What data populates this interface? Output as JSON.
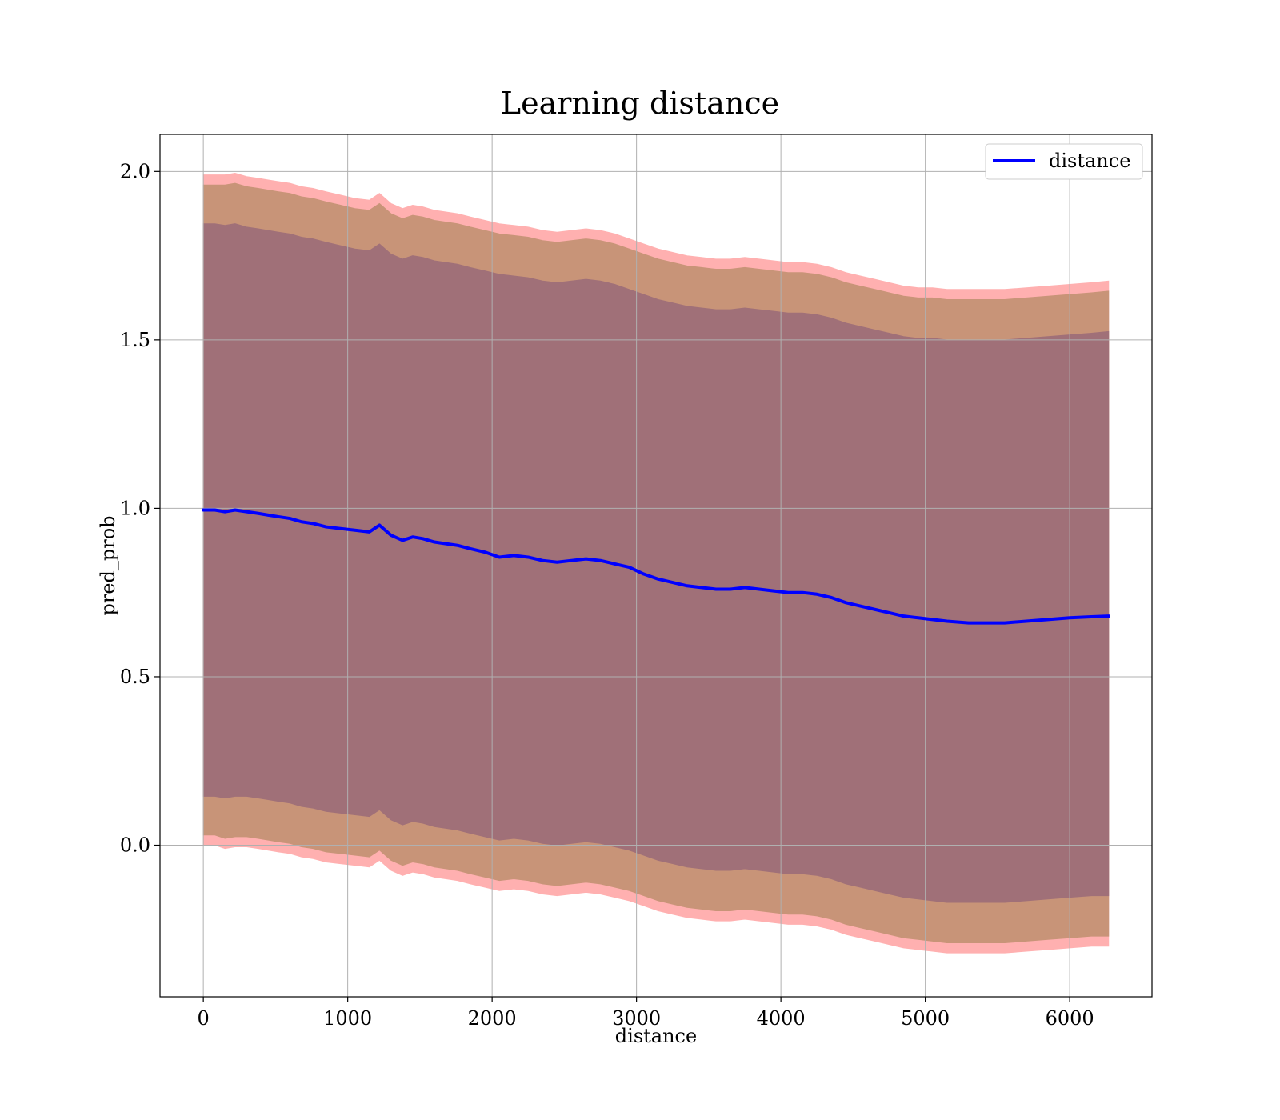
{
  "chart_data": {
    "type": "line",
    "title": "Learning distance",
    "xlabel": "distance",
    "ylabel": "pred_prob",
    "xlim": [
      -300,
      6570
    ],
    "ylim": [
      -0.45,
      2.11
    ],
    "xticks": [
      0,
      1000,
      2000,
      3000,
      4000,
      5000,
      6000
    ],
    "yticks": [
      0.0,
      0.5,
      1.0,
      1.5,
      2.0
    ],
    "xtick_labels": [
      "0",
      "1000",
      "2000",
      "3000",
      "4000",
      "5000",
      "6000"
    ],
    "ytick_labels": [
      "0.0",
      "0.5",
      "1.0",
      "1.5",
      "2.0"
    ],
    "grid": true,
    "legend_position": "top-right",
    "colors": {
      "line": "#0000ff",
      "band_outer": "#ffb0b0",
      "band_middle": "#c89478",
      "band_inner": "#a07078",
      "grid": "#b0b0b0"
    },
    "series": [
      {
        "name": "distance",
        "x": [
          0,
          80,
          150,
          220,
          300,
          380,
          450,
          520,
          600,
          680,
          760,
          850,
          950,
          1050,
          1150,
          1220,
          1300,
          1380,
          1450,
          1520,
          1600,
          1680,
          1760,
          1850,
          1950,
          2050,
          2150,
          2250,
          2350,
          2450,
          2550,
          2650,
          2750,
          2850,
          2950,
          3050,
          3150,
          3250,
          3350,
          3450,
          3550,
          3650,
          3750,
          3850,
          3950,
          4050,
          4150,
          4250,
          4350,
          4450,
          4550,
          4650,
          4750,
          4850,
          4950,
          5050,
          5150,
          5300,
          5450,
          5550,
          5700,
          5850,
          6000,
          6150,
          6270
        ],
        "values": [
          0.995,
          0.995,
          0.99,
          0.995,
          0.99,
          0.985,
          0.98,
          0.975,
          0.97,
          0.96,
          0.955,
          0.945,
          0.94,
          0.935,
          0.93,
          0.95,
          0.92,
          0.905,
          0.915,
          0.91,
          0.9,
          0.895,
          0.89,
          0.88,
          0.87,
          0.855,
          0.86,
          0.855,
          0.845,
          0.84,
          0.845,
          0.85,
          0.845,
          0.835,
          0.825,
          0.805,
          0.79,
          0.78,
          0.77,
          0.765,
          0.76,
          0.76,
          0.765,
          0.76,
          0.755,
          0.75,
          0.75,
          0.745,
          0.735,
          0.72,
          0.71,
          0.7,
          0.69,
          0.68,
          0.675,
          0.67,
          0.665,
          0.66,
          0.66,
          0.66,
          0.665,
          0.67,
          0.675,
          0.678,
          0.68
        ]
      }
    ],
    "bands": [
      {
        "upper": [
          1.99,
          1.99,
          1.99,
          1.995,
          1.985,
          1.98,
          1.975,
          1.97,
          1.965,
          1.955,
          1.95,
          1.94,
          1.93,
          1.92,
          1.915,
          1.935,
          1.905,
          1.89,
          1.9,
          1.895,
          1.885,
          1.88,
          1.875,
          1.865,
          1.855,
          1.845,
          1.84,
          1.835,
          1.825,
          1.82,
          1.825,
          1.83,
          1.825,
          1.815,
          1.8,
          1.785,
          1.77,
          1.76,
          1.75,
          1.745,
          1.74,
          1.74,
          1.745,
          1.74,
          1.735,
          1.73,
          1.73,
          1.725,
          1.715,
          1.7,
          1.69,
          1.68,
          1.67,
          1.66,
          1.655,
          1.655,
          1.65,
          1.65,
          1.65,
          1.65,
          1.655,
          1.66,
          1.665,
          1.67,
          1.675
        ],
        "lower": [
          0.0,
          0.0,
          -0.01,
          -0.005,
          -0.005,
          -0.01,
          -0.015,
          -0.02,
          -0.025,
          -0.035,
          -0.04,
          -0.05,
          -0.055,
          -0.06,
          -0.065,
          -0.045,
          -0.075,
          -0.09,
          -0.08,
          -0.085,
          -0.095,
          -0.1,
          -0.105,
          -0.115,
          -0.125,
          -0.135,
          -0.13,
          -0.135,
          -0.145,
          -0.15,
          -0.145,
          -0.14,
          -0.145,
          -0.155,
          -0.165,
          -0.18,
          -0.195,
          -0.205,
          -0.215,
          -0.22,
          -0.225,
          -0.225,
          -0.22,
          -0.225,
          -0.23,
          -0.235,
          -0.235,
          -0.24,
          -0.25,
          -0.265,
          -0.275,
          -0.285,
          -0.295,
          -0.305,
          -0.31,
          -0.315,
          -0.32,
          -0.32,
          -0.32,
          -0.32,
          -0.315,
          -0.31,
          -0.305,
          -0.3,
          -0.3
        ]
      },
      {
        "upper": [
          1.96,
          1.96,
          1.96,
          1.965,
          1.955,
          1.95,
          1.945,
          1.94,
          1.935,
          1.925,
          1.92,
          1.91,
          1.9,
          1.89,
          1.885,
          1.905,
          1.875,
          1.86,
          1.87,
          1.865,
          1.855,
          1.85,
          1.845,
          1.835,
          1.825,
          1.815,
          1.81,
          1.805,
          1.795,
          1.79,
          1.795,
          1.8,
          1.795,
          1.785,
          1.77,
          1.755,
          1.74,
          1.73,
          1.72,
          1.715,
          1.71,
          1.71,
          1.715,
          1.71,
          1.705,
          1.7,
          1.7,
          1.695,
          1.685,
          1.67,
          1.66,
          1.65,
          1.64,
          1.63,
          1.625,
          1.625,
          1.62,
          1.62,
          1.62,
          1.62,
          1.625,
          1.63,
          1.635,
          1.64,
          1.645
        ],
        "lower": [
          0.03,
          0.03,
          0.02,
          0.025,
          0.025,
          0.02,
          0.015,
          0.01,
          0.005,
          -0.005,
          -0.01,
          -0.02,
          -0.025,
          -0.03,
          -0.035,
          -0.015,
          -0.045,
          -0.06,
          -0.05,
          -0.055,
          -0.065,
          -0.07,
          -0.075,
          -0.085,
          -0.095,
          -0.105,
          -0.1,
          -0.105,
          -0.115,
          -0.12,
          -0.115,
          -0.11,
          -0.115,
          -0.125,
          -0.135,
          -0.15,
          -0.165,
          -0.175,
          -0.185,
          -0.19,
          -0.195,
          -0.195,
          -0.19,
          -0.195,
          -0.2,
          -0.205,
          -0.205,
          -0.21,
          -0.22,
          -0.235,
          -0.245,
          -0.255,
          -0.265,
          -0.275,
          -0.28,
          -0.285,
          -0.29,
          -0.29,
          -0.29,
          -0.29,
          -0.285,
          -0.28,
          -0.275,
          -0.27,
          -0.27
        ]
      },
      {
        "upper": [
          1.845,
          1.845,
          1.84,
          1.845,
          1.835,
          1.83,
          1.825,
          1.82,
          1.815,
          1.805,
          1.8,
          1.79,
          1.78,
          1.77,
          1.765,
          1.785,
          1.755,
          1.74,
          1.75,
          1.745,
          1.735,
          1.73,
          1.725,
          1.715,
          1.705,
          1.695,
          1.69,
          1.685,
          1.675,
          1.67,
          1.675,
          1.68,
          1.675,
          1.665,
          1.65,
          1.635,
          1.62,
          1.61,
          1.6,
          1.595,
          1.59,
          1.59,
          1.595,
          1.59,
          1.585,
          1.58,
          1.58,
          1.575,
          1.565,
          1.55,
          1.54,
          1.53,
          1.52,
          1.51,
          1.505,
          1.505,
          1.5,
          1.5,
          1.5,
          1.5,
          1.505,
          1.51,
          1.515,
          1.52,
          1.525
        ],
        "lower": [
          0.145,
          0.145,
          0.14,
          0.145,
          0.145,
          0.14,
          0.135,
          0.13,
          0.125,
          0.115,
          0.11,
          0.1,
          0.095,
          0.09,
          0.085,
          0.105,
          0.075,
          0.06,
          0.07,
          0.065,
          0.055,
          0.05,
          0.045,
          0.035,
          0.025,
          0.015,
          0.02,
          0.015,
          0.005,
          0.0,
          0.005,
          0.01,
          0.005,
          -0.005,
          -0.015,
          -0.03,
          -0.045,
          -0.055,
          -0.065,
          -0.07,
          -0.075,
          -0.075,
          -0.07,
          -0.075,
          -0.08,
          -0.085,
          -0.085,
          -0.09,
          -0.1,
          -0.115,
          -0.125,
          -0.135,
          -0.145,
          -0.155,
          -0.16,
          -0.165,
          -0.17,
          -0.17,
          -0.17,
          -0.17,
          -0.165,
          -0.16,
          -0.155,
          -0.15,
          -0.15
        ]
      }
    ]
  }
}
